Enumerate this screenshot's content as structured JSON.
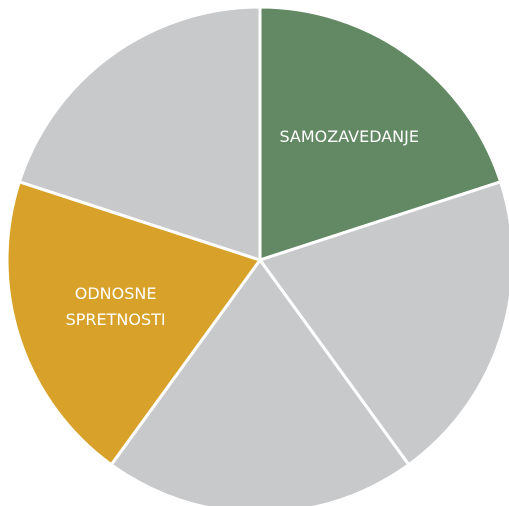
{
  "chart_data": {
    "type": "pie",
    "categories": [
      "SAMOZAVEDANJE",
      null,
      null,
      "ODNOSNE SPRETNOSTI",
      null
    ],
    "values": [
      20,
      20,
      20,
      20,
      20
    ],
    "colors": [
      "#628963",
      "#c8c9cb",
      "#c8c9cb",
      "#d8a12a",
      "#c8c9cb"
    ]
  }
}
